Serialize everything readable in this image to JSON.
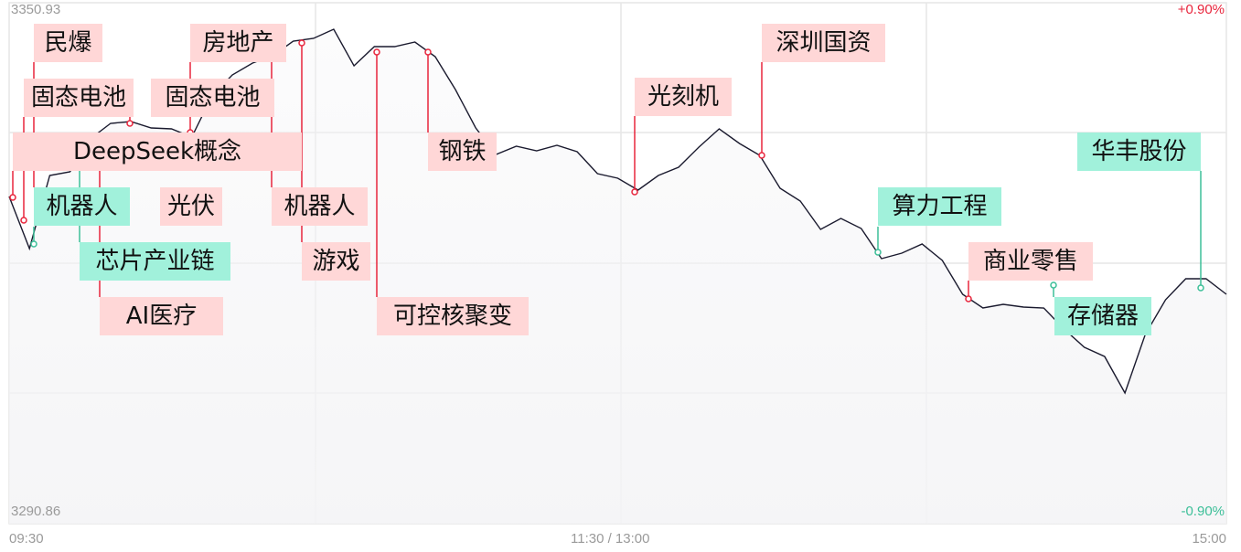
{
  "chart_data": {
    "type": "line",
    "title": "",
    "y_axis": {
      "top_label": "3350.93",
      "bottom_label": "3290.86",
      "ylim": [
        3290.86,
        3350.93
      ]
    },
    "y_axis_right": {
      "top_label": "+0.90%",
      "bottom_label": "-0.90%"
    },
    "x_axis": {
      "tick_labels": [
        "09:30",
        "11:30 / 13:00",
        "15:00"
      ]
    },
    "grid": true,
    "sampling": "evenly spaced across trading session",
    "values": [
      3328.59,
      3322.58,
      3331.01,
      3331.43,
      3335.23,
      3337.02,
      3337.23,
      3336.49,
      3336.39,
      3335.44,
      3340.18,
      3342.6,
      3343.97,
      3344.82,
      3346.5,
      3346.82,
      3347.87,
      3343.66,
      3345.87,
      3345.87,
      3346.4,
      3344.71,
      3340.92,
      3336.49,
      3333.44,
      3334.38,
      3333.86,
      3334.49,
      3333.75,
      3331.22,
      3330.7,
      3329.33,
      3331.01,
      3331.96,
      3334.28,
      3336.39,
      3334.7,
      3333.33,
      3329.54,
      3328.06,
      3324.79,
      3326.06,
      3324.9,
      3321.42,
      3322.05,
      3323.11,
      3321.21,
      3317.31,
      3315.73,
      3316.15,
      3315.84,
      3315.73,
      3313.31,
      3311.2,
      3310.14,
      3305.93,
      3312.67,
      3316.68,
      3319.1,
      3319.1,
      3317.31
    ],
    "annotations": [
      {
        "text": "DeepSeek概念",
        "color": "red"
      },
      {
        "text": "光伏",
        "color": "red"
      },
      {
        "text": "民爆",
        "color": "red"
      },
      {
        "text": "固态电池",
        "color": "red"
      },
      {
        "text": "固态电池",
        "color": "red"
      },
      {
        "text": "房地产",
        "color": "red"
      },
      {
        "text": "机器人",
        "color": "green"
      },
      {
        "text": "芯片产业链",
        "color": "green"
      },
      {
        "text": "AI医疗",
        "color": "red"
      },
      {
        "text": "机器人",
        "color": "red"
      },
      {
        "text": "游戏",
        "color": "red"
      },
      {
        "text": "可控核聚变",
        "color": "red"
      },
      {
        "text": "钢铁",
        "color": "red"
      },
      {
        "text": "光刻机",
        "color": "red"
      },
      {
        "text": "深圳国资",
        "color": "red"
      },
      {
        "text": "算力工程",
        "color": "green"
      },
      {
        "text": "商业零售",
        "color": "red"
      },
      {
        "text": "存储器",
        "color": "green"
      },
      {
        "text": "华丰股份",
        "color": "green"
      }
    ],
    "colors": {
      "line": "#1a1a2e",
      "up": "#e8253c",
      "down": "#3cbf98",
      "tag_red_bg": "#ffd7d7",
      "tag_green_bg": "#a1f1db",
      "grid": "#e6e6e6"
    }
  }
}
